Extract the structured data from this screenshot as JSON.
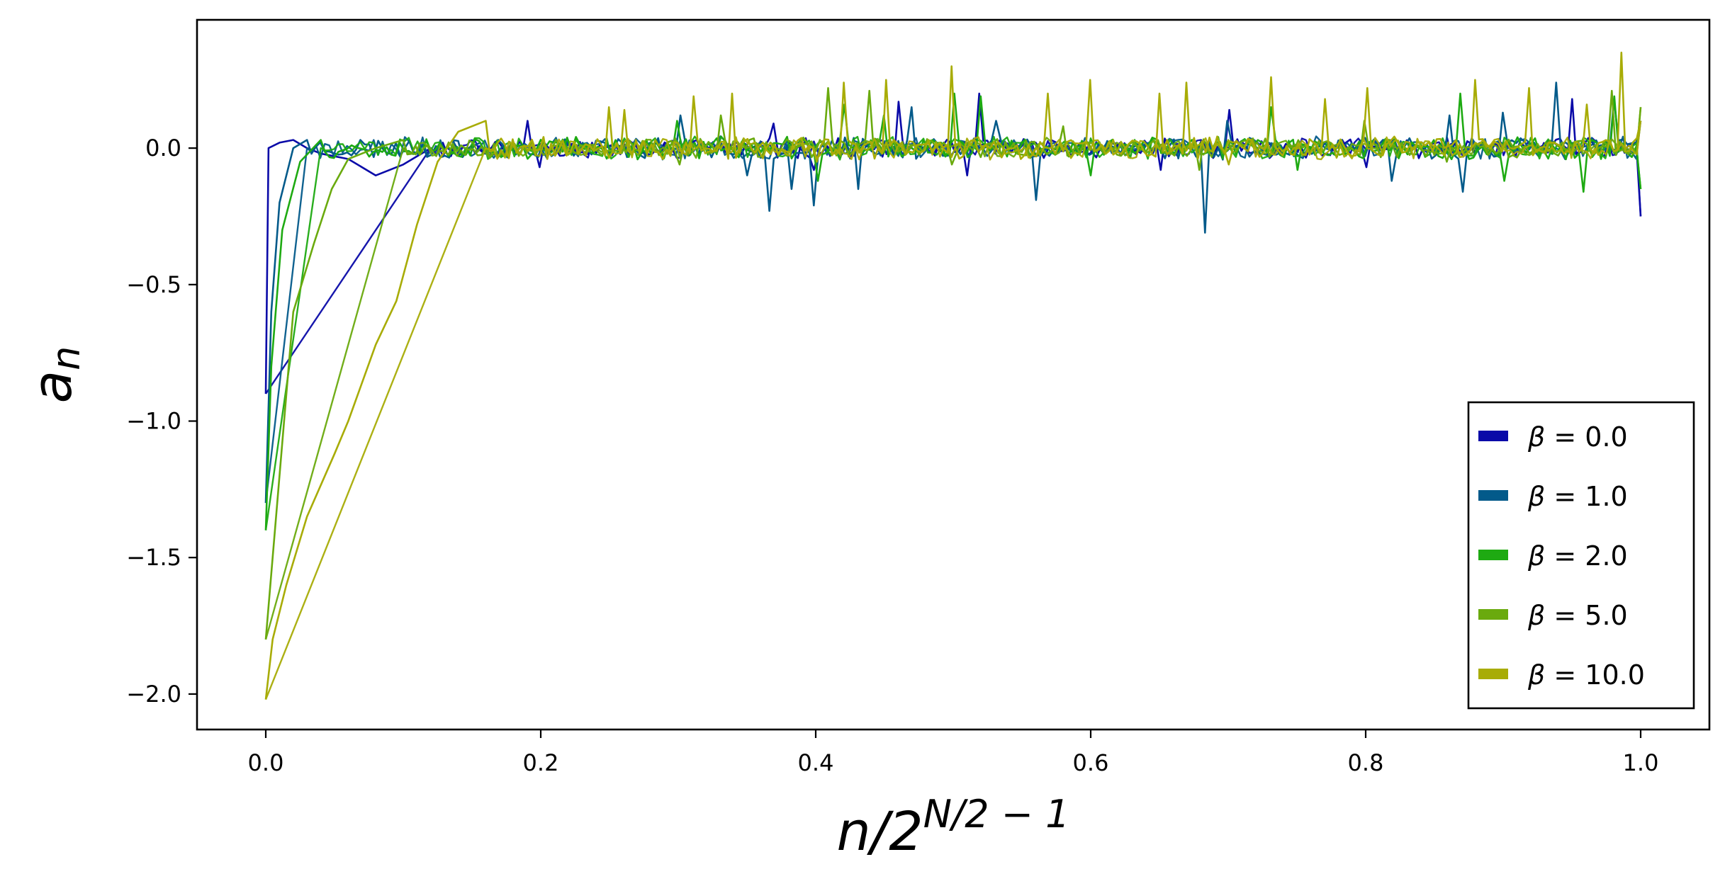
{
  "chart_data": {
    "type": "line",
    "xlabel": {
      "base": "n/2",
      "sup": "N/2 − 1"
    },
    "ylabel": {
      "base": "a",
      "sub": "n"
    },
    "xlim": [
      -0.05,
      1.05
    ],
    "ylim": [
      -2.13,
      0.47
    ],
    "xticks": [
      0.0,
      0.2,
      0.4,
      0.6,
      0.8,
      1.0
    ],
    "xtick_labels": [
      "0.0",
      "0.2",
      "0.4",
      "0.6",
      "0.8",
      "1.0"
    ],
    "yticks": [
      0.0,
      -0.5,
      -1.0,
      -1.5,
      -2.0
    ],
    "ytick_labels": [
      "0.0",
      "−0.5",
      "−1.0",
      "−1.5",
      "−2.0"
    ],
    "grid": false,
    "legend_position": "lower-right",
    "series": [
      {
        "name": "β = 0.0",
        "beta": "0.0",
        "color": "#0a0aa8",
        "start": [
          [
            0.0,
            -0.9
          ],
          [
            0.002,
            0.0
          ],
          [
            0.01,
            0.02
          ],
          [
            0.02,
            0.03
          ],
          [
            0.03,
            0.0
          ],
          [
            0.04,
            -0.02
          ],
          [
            0.06,
            -0.04
          ],
          [
            0.08,
            -0.1
          ],
          [
            0.1,
            -0.06
          ],
          [
            0.12,
            0.0
          ]
        ],
        "peaks": [
          [
            0.19,
            0.1
          ],
          [
            0.37,
            0.09
          ],
          [
            0.46,
            0.17
          ],
          [
            0.52,
            0.2
          ],
          [
            0.7,
            0.14
          ],
          [
            0.95,
            0.18
          ]
        ],
        "dips": [
          [
            0.2,
            -0.07
          ],
          [
            0.4,
            -0.08
          ],
          [
            0.51,
            -0.1
          ],
          [
            0.65,
            -0.08
          ],
          [
            0.8,
            -0.07
          ]
        ],
        "end": -0.25,
        "seed": 11,
        "noise": 0.03
      },
      {
        "name": "β = 1.0",
        "beta": "1.0",
        "color": "#035a8a",
        "start": [
          [
            0.0,
            -1.3
          ],
          [
            0.004,
            -0.6
          ],
          [
            0.01,
            -0.2
          ],
          [
            0.02,
            0.0
          ],
          [
            0.03,
            0.03
          ]
        ],
        "peaks": [
          [
            0.3,
            0.12
          ],
          [
            0.47,
            0.15
          ],
          [
            0.53,
            0.1
          ],
          [
            0.7,
            0.1
          ],
          [
            0.86,
            0.12
          ],
          [
            0.9,
            0.13
          ],
          [
            0.94,
            0.24
          ],
          [
            0.98,
            0.18
          ]
        ],
        "dips": [
          [
            0.35,
            -0.1
          ],
          [
            0.365,
            -0.23
          ],
          [
            0.384,
            -0.15
          ],
          [
            0.4,
            -0.21
          ],
          [
            0.43,
            -0.15
          ],
          [
            0.56,
            -0.19
          ],
          [
            0.683,
            -0.31
          ],
          [
            0.82,
            -0.12
          ],
          [
            0.87,
            -0.16
          ]
        ],
        "end": 0.1,
        "seed": 23,
        "noise": 0.035
      },
      {
        "name": "β = 2.0",
        "beta": "2.0",
        "color": "#1eaa12",
        "start": [
          [
            0.0,
            -1.4
          ],
          [
            0.004,
            -0.8
          ],
          [
            0.012,
            -0.3
          ],
          [
            0.025,
            -0.05
          ],
          [
            0.04,
            0.03
          ]
        ],
        "peaks": [
          [
            0.3,
            0.1
          ],
          [
            0.42,
            0.16
          ],
          [
            0.45,
            0.12
          ],
          [
            0.5,
            0.2
          ],
          [
            0.52,
            0.19
          ],
          [
            0.73,
            0.15
          ],
          [
            0.87,
            0.2
          ],
          [
            0.98,
            0.19
          ]
        ],
        "dips": [
          [
            0.4,
            -0.12
          ],
          [
            0.6,
            -0.1
          ],
          [
            0.75,
            -0.08
          ],
          [
            0.9,
            -0.12
          ],
          [
            0.96,
            -0.16
          ]
        ],
        "end": -0.15,
        "seed": 37,
        "noise": 0.035
      },
      {
        "name": "β = 5.0",
        "beta": "5.0",
        "color": "#6aaa0e",
        "start": [
          [
            0.0,
            -1.8
          ],
          [
            0.01,
            -1.2
          ],
          [
            0.02,
            -0.6
          ],
          [
            0.035,
            -0.35
          ],
          [
            0.048,
            -0.15
          ],
          [
            0.06,
            -0.04
          ],
          [
            0.08,
            0.0
          ],
          [
            0.1,
            0.03
          ]
        ],
        "peaks": [
          [
            0.33,
            0.12
          ],
          [
            0.41,
            0.22
          ],
          [
            0.44,
            0.21
          ],
          [
            0.58,
            0.08
          ],
          [
            0.8,
            0.1
          ],
          [
            0.98,
            0.21
          ]
        ],
        "dips": [
          [
            0.3,
            -0.06
          ],
          [
            0.5,
            -0.06
          ],
          [
            0.68,
            -0.08
          ],
          [
            0.86,
            -0.05
          ]
        ],
        "end": 0.15,
        "seed": 53,
        "noise": 0.03
      },
      {
        "name": "β = 10.0",
        "beta": "10.0",
        "color": "#a8ac06",
        "start": [
          [
            0.0,
            -2.02
          ],
          [
            0.005,
            -1.8
          ],
          [
            0.015,
            -1.6
          ],
          [
            0.03,
            -1.35
          ],
          [
            0.05,
            -1.12
          ],
          [
            0.06,
            -1.0
          ],
          [
            0.08,
            -0.72
          ],
          [
            0.095,
            -0.56
          ],
          [
            0.11,
            -0.28
          ],
          [
            0.125,
            -0.05
          ],
          [
            0.14,
            0.06
          ],
          [
            0.16,
            0.1
          ]
        ],
        "peaks": [
          [
            0.25,
            0.15
          ],
          [
            0.26,
            0.14
          ],
          [
            0.31,
            0.19
          ],
          [
            0.34,
            0.2
          ],
          [
            0.42,
            0.24
          ],
          [
            0.45,
            0.25
          ],
          [
            0.5,
            0.3
          ],
          [
            0.55,
            0.29
          ],
          [
            0.57,
            0.2
          ],
          [
            0.6,
            0.25
          ],
          [
            0.65,
            0.2
          ],
          [
            0.67,
            0.24
          ],
          [
            0.73,
            0.26
          ],
          [
            0.77,
            0.18
          ],
          [
            0.8,
            0.22
          ],
          [
            0.88,
            0.25
          ],
          [
            0.92,
            0.22
          ],
          [
            0.96,
            0.16
          ],
          [
            0.985,
            0.35
          ]
        ],
        "dips": [
          [
            0.4,
            -0.05
          ],
          [
            0.55,
            -0.04
          ],
          [
            0.7,
            -0.06
          ]
        ],
        "end": 0.1,
        "seed": 71,
        "noise": 0.035
      }
    ]
  }
}
